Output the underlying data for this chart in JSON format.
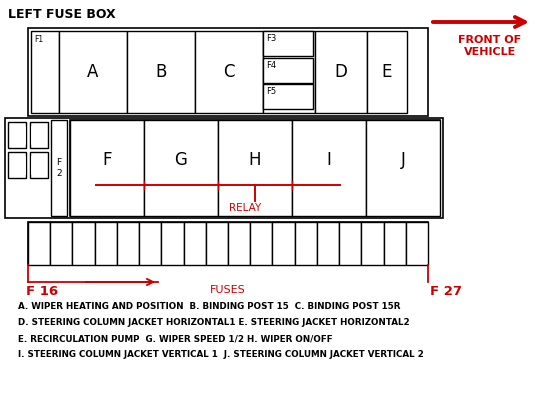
{
  "title": "LEFT FUSE BOX",
  "front_label": "FRONT OF\nVEHICLE",
  "relay_label": "RELAY",
  "fuses_label": "FUSES",
  "f16_label": "F 16",
  "f27_label": "F 27",
  "legend_lines": [
    "A. WIPER HEATING AND POSITION  B. BINDING POST 15  C. BINDING POST 15R",
    "D. STEERING COLUMN JACKET HORIZONTAL1 E. STEERING JACKET HORIZONTAL2",
    "E. RECIRCULATION PUMP  G. WIPER SPEED 1/2 H. WIPER ON/OFF",
    "I. STEERING COLUMN JACKET VERTICAL 1  J. STEERING COLUMN JACKET VERTICAL 2"
  ],
  "relay_row_labels": [
    "F",
    "G",
    "H",
    "I",
    "J"
  ],
  "middle_labels": [
    "F3",
    "F4",
    "F5"
  ],
  "f2_label": "F\n2",
  "bg_color": "#ffffff",
  "box_edge": "#000000",
  "red_color": "#cc0000",
  "num_fuses": 18,
  "top_boxes": [
    {
      "label": "A",
      "lbl_size": 13
    },
    {
      "label": "B",
      "lbl_size": 13
    },
    {
      "label": "C",
      "lbl_size": 13
    },
    {
      "label": "D",
      "lbl_size": 13
    },
    {
      "label": "E",
      "lbl_size": 13
    }
  ]
}
